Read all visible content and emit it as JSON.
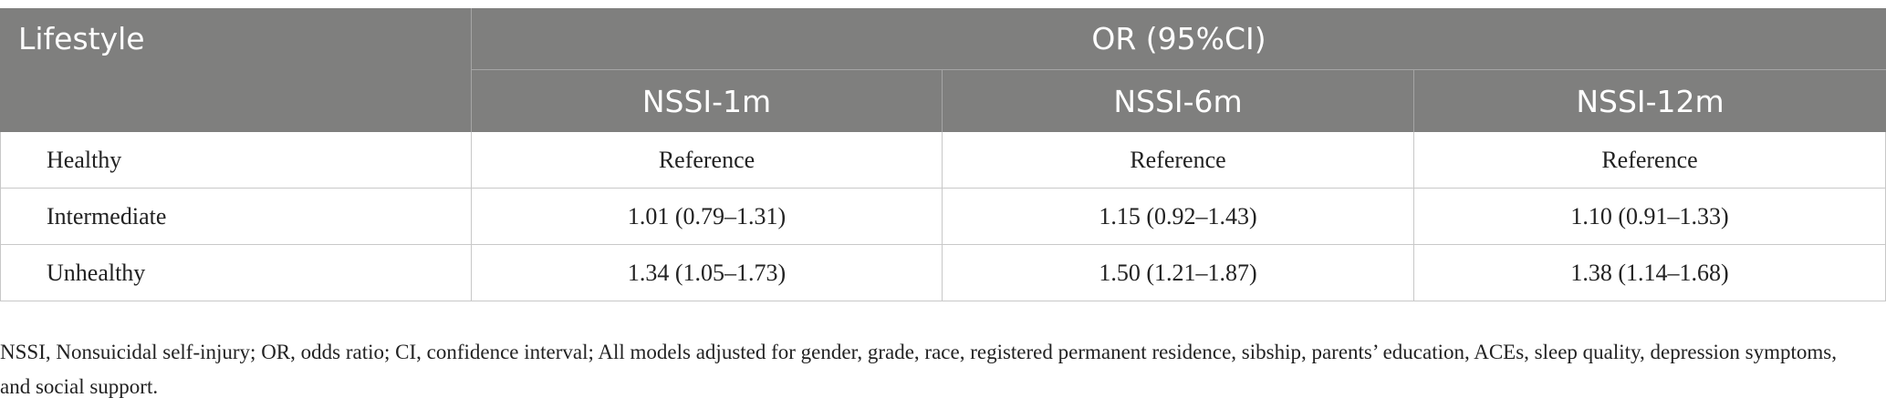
{
  "header": {
    "lifestyle": "Lifestyle",
    "group": "OR (95%CI)",
    "columns": [
      "NSSI-1m",
      "NSSI-6m",
      "NSSI-12m"
    ]
  },
  "table": {
    "rows": [
      [
        "Healthy",
        "Reference",
        "Reference",
        "Reference"
      ],
      [
        "Intermediate",
        "1.01 (0.79–1.31)",
        "1.15 (0.92–1.43)",
        "1.10 (0.91–1.33)"
      ],
      [
        "Unhealthy",
        "1.34 (1.05–1.73)",
        "1.50 (1.21–1.87)",
        "1.38 (1.14–1.68)"
      ]
    ]
  },
  "footnote": "NSSI, Nonsuicidal self-injury; OR, odds ratio; CI, confidence interval; All models adjusted for gender, grade, race, registered permanent residence, sibship, parents’ education, ACEs, sleep quality, depression symptoms, and social support."
}
